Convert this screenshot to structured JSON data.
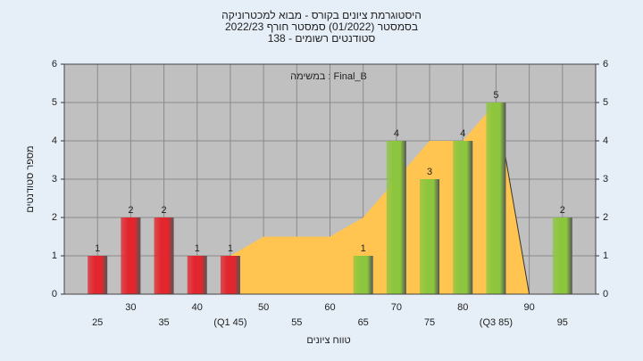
{
  "chart_data": {
    "type": "bar",
    "title": [
      "היסטוגרמת ציונים בקורס - מבוא למכטרוניקה",
      "בסמסטר (01/2022) סמסטר חורף 2022/23",
      "סטודנטים רשומים - 138"
    ],
    "annotation": "במשימה : Final_B",
    "xlabel": "טווח ציונים",
    "ylabel": "מספר סטודנטים",
    "categories": [
      "25",
      "30",
      "35",
      "40",
      "(Q1 45)",
      "50",
      "55",
      "60",
      "65",
      "70",
      "75",
      "80",
      "(Q3 85)",
      "90",
      "95"
    ],
    "values": [
      1,
      2,
      2,
      1,
      1,
      0,
      0,
      0,
      1,
      4,
      3,
      4,
      5,
      0,
      2
    ],
    "colors": [
      "#e3262e",
      "#e3262e",
      "#e3262e",
      "#e3262e",
      "#e3262e",
      "#e3262e",
      "#e3262e",
      "#e3262e",
      "#8cc63e",
      "#8cc63e",
      "#8cc63e",
      "#8cc63e",
      "#8cc63e",
      "#8cc63e",
      "#8cc63e"
    ],
    "area": {
      "color": "#ffc550",
      "values": [
        null,
        null,
        null,
        null,
        1,
        1.5,
        1.5,
        1.5,
        2,
        3,
        4,
        4,
        5,
        0,
        null
      ]
    },
    "ylim": [
      0,
      6
    ],
    "yticks": [
      0,
      1,
      2,
      3,
      4,
      5,
      6
    ],
    "grid": true,
    "right_axis": true
  }
}
